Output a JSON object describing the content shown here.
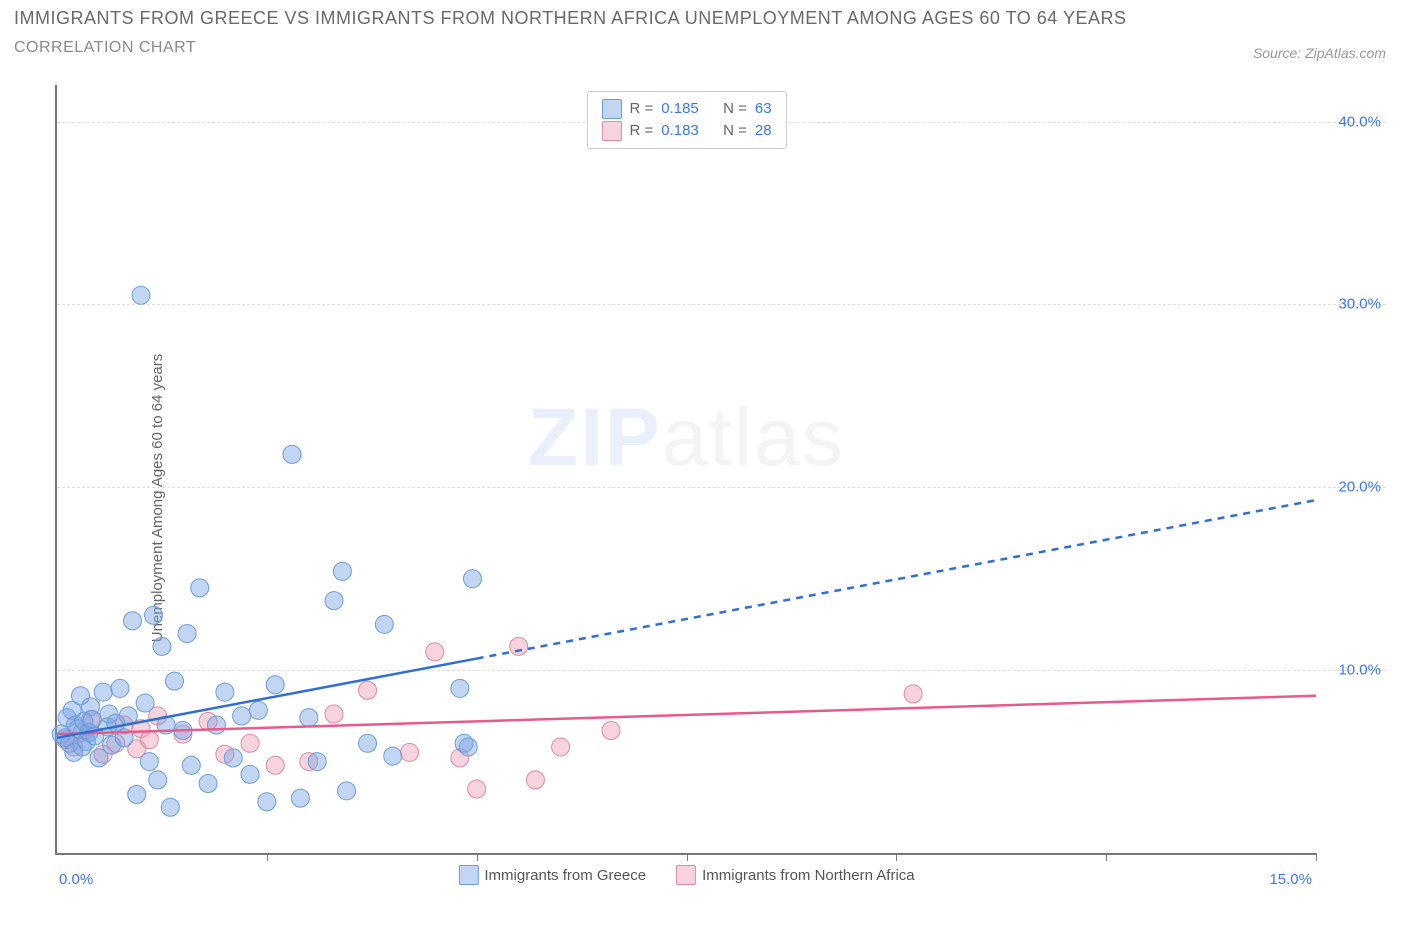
{
  "title_main": "IMMIGRANTS FROM GREECE VS IMMIGRANTS FROM NORTHERN AFRICA UNEMPLOYMENT AMONG AGES 60 TO 64 YEARS",
  "title_sub": "CORRELATION CHART",
  "source_prefix": "Source: ",
  "source_name": "ZipAtlas.com",
  "ylabel": "Unemployment Among Ages 60 to 64 years",
  "watermark_bold": "ZIP",
  "watermark_light": "atlas",
  "chart": {
    "type": "scatter",
    "background_color": "#ffffff",
    "grid_color": "#dddddd",
    "axis_color": "#777777",
    "x_domain": [
      0,
      15
    ],
    "y_domain": [
      0,
      42
    ],
    "y_ticks": [
      10,
      20,
      30,
      40
    ],
    "y_tick_labels": [
      "10.0%",
      "20.0%",
      "30.0%",
      "40.0%"
    ],
    "x_minor_ticks": [
      2.5,
      5.0,
      7.5,
      10.0,
      12.5,
      15.0
    ],
    "x_start_label": "0.0%",
    "x_end_label": "15.0%",
    "label_color": "#3b78e7",
    "label_fontsize": 15,
    "marker_radius": 9,
    "marker_opacity": 0.45,
    "series": [
      {
        "id": "greece",
        "label": "Immigrants from Greece",
        "color_fill": "rgba(120,165,230,0.45)",
        "color_stroke": "#6a9ed8",
        "trend_color": "#2e6fd6",
        "trend_width": 2.5,
        "trend_solid_until_x": 5.0,
        "trend_start": [
          0.0,
          6.3
        ],
        "trend_end": [
          15.0,
          19.3
        ],
        "R_label": "R = ",
        "R_value": "0.185",
        "N_label": "N = ",
        "N_value": "63",
        "points": [
          [
            0.05,
            6.5
          ],
          [
            0.1,
            6.3
          ],
          [
            0.12,
            7.4
          ],
          [
            0.15,
            6.0
          ],
          [
            0.18,
            7.8
          ],
          [
            0.2,
            5.5
          ],
          [
            0.22,
            7.0
          ],
          [
            0.25,
            6.8
          ],
          [
            0.28,
            8.6
          ],
          [
            0.3,
            5.8
          ],
          [
            0.32,
            7.2
          ],
          [
            0.35,
            6.1
          ],
          [
            0.38,
            6.6
          ],
          [
            0.4,
            8.0
          ],
          [
            0.42,
            7.3
          ],
          [
            0.45,
            6.4
          ],
          [
            0.5,
            5.2
          ],
          [
            0.55,
            8.8
          ],
          [
            0.6,
            6.9
          ],
          [
            0.62,
            7.6
          ],
          [
            0.65,
            5.9
          ],
          [
            0.7,
            7.1
          ],
          [
            0.75,
            9.0
          ],
          [
            0.8,
            6.3
          ],
          [
            0.85,
            7.5
          ],
          [
            0.9,
            12.7
          ],
          [
            0.95,
            3.2
          ],
          [
            1.0,
            30.5
          ],
          [
            1.05,
            8.2
          ],
          [
            1.1,
            5.0
          ],
          [
            1.15,
            13.0
          ],
          [
            1.2,
            4.0
          ],
          [
            1.25,
            11.3
          ],
          [
            1.3,
            7.0
          ],
          [
            1.35,
            2.5
          ],
          [
            1.4,
            9.4
          ],
          [
            1.5,
            6.7
          ],
          [
            1.55,
            12.0
          ],
          [
            1.6,
            4.8
          ],
          [
            1.7,
            14.5
          ],
          [
            1.8,
            3.8
          ],
          [
            1.9,
            7.0
          ],
          [
            2.0,
            8.8
          ],
          [
            2.1,
            5.2
          ],
          [
            2.2,
            7.5
          ],
          [
            2.3,
            4.3
          ],
          [
            2.4,
            7.8
          ],
          [
            2.5,
            2.8
          ],
          [
            2.6,
            9.2
          ],
          [
            2.8,
            21.8
          ],
          [
            2.9,
            3.0
          ],
          [
            3.0,
            7.4
          ],
          [
            3.1,
            5.0
          ],
          [
            3.3,
            13.8
          ],
          [
            3.4,
            15.4
          ],
          [
            3.45,
            3.4
          ],
          [
            3.7,
            6.0
          ],
          [
            3.9,
            12.5
          ],
          [
            4.0,
            5.3
          ],
          [
            4.8,
            9.0
          ],
          [
            4.85,
            6.0
          ],
          [
            4.9,
            5.8
          ],
          [
            4.95,
            15.0
          ]
        ]
      },
      {
        "id": "nafrica",
        "label": "Immigrants from Northern Africa",
        "color_fill": "rgba(235,150,175,0.42)",
        "color_stroke": "#e08aa5",
        "trend_color": "#e75a8a",
        "trend_width": 2.5,
        "trend_solid_until_x": 15.0,
        "trend_start": [
          0.0,
          6.5
        ],
        "trend_end": [
          15.0,
          8.6
        ],
        "R_label": "R = ",
        "R_value": "0.183",
        "N_label": "N = ",
        "N_value": "28",
        "points": [
          [
            0.1,
            6.2
          ],
          [
            0.2,
            5.8
          ],
          [
            0.3,
            6.6
          ],
          [
            0.4,
            7.3
          ],
          [
            0.55,
            5.4
          ],
          [
            0.7,
            6.0
          ],
          [
            0.8,
            7.0
          ],
          [
            0.95,
            5.7
          ],
          [
            1.0,
            6.8
          ],
          [
            1.1,
            6.2
          ],
          [
            1.2,
            7.5
          ],
          [
            1.5,
            6.5
          ],
          [
            1.8,
            7.2
          ],
          [
            2.0,
            5.4
          ],
          [
            2.3,
            6.0
          ],
          [
            2.6,
            4.8
          ],
          [
            3.0,
            5.0
          ],
          [
            3.3,
            7.6
          ],
          [
            3.7,
            8.9
          ],
          [
            4.2,
            5.5
          ],
          [
            4.5,
            11.0
          ],
          [
            4.8,
            5.2
          ],
          [
            5.0,
            3.5
          ],
          [
            5.5,
            11.3
          ],
          [
            5.7,
            4.0
          ],
          [
            6.0,
            5.8
          ],
          [
            6.6,
            6.7
          ],
          [
            10.2,
            8.7
          ]
        ]
      }
    ]
  }
}
